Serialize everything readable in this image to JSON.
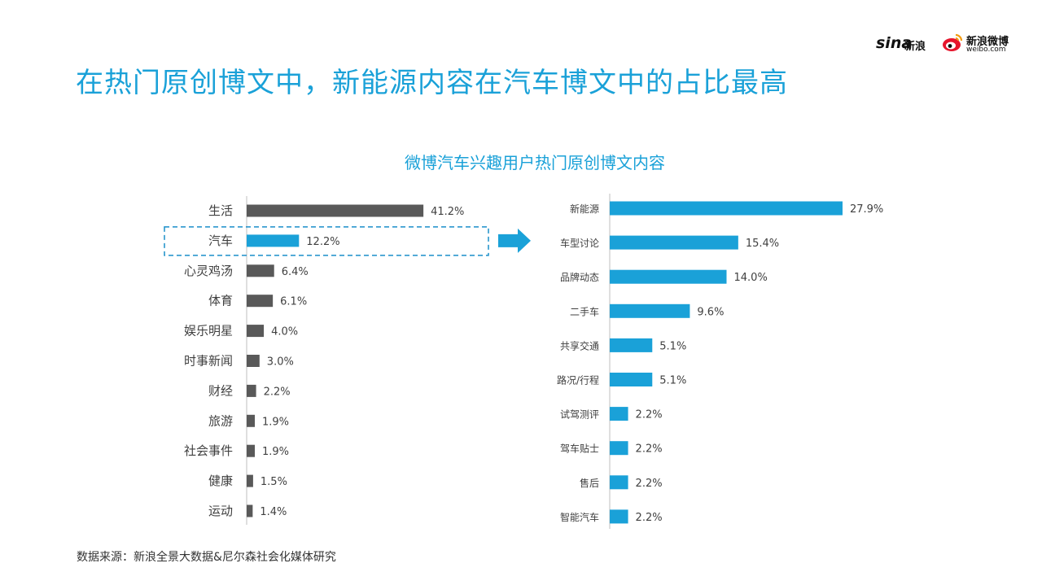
{
  "headline": "在热门原创博文中，新能源内容在汽车博文中的占比最高",
  "brand": {
    "sina": "sina",
    "sina_cn": "新浪",
    "weibo_name": "新浪微博",
    "weibo_url": "weibo.com"
  },
  "chart_title": "微博汽车兴趣用户热门原创博文内容",
  "source": "数据来源：新浪全景大数据&尼尔森社会化媒体研究",
  "colors": {
    "accent": "#1aa1d8",
    "dark_bar": "#595959",
    "highlight_border": "#1a8fc9"
  },
  "chart_data": [
    {
      "type": "bar",
      "orientation": "horizontal",
      "categories": [
        "生活",
        "汽车",
        "心灵鸡汤",
        "体育",
        "娱乐明星",
        "时事新闻",
        "财经",
        "旅游",
        "社会事件",
        "健康",
        "运动"
      ],
      "values": [
        41.2,
        12.2,
        6.4,
        6.1,
        4.0,
        3.0,
        2.2,
        1.9,
        1.9,
        1.5,
        1.4
      ],
      "value_labels": [
        "41.2%",
        "12.2%",
        "6.4%",
        "6.1%",
        "4.0%",
        "3.0%",
        "2.2%",
        "1.9%",
        "1.9%",
        "1.5%",
        "1.4%"
      ],
      "highlighted_category": "汽车",
      "bar_color": "#595959",
      "highlight_color": "#1aa1d8"
    },
    {
      "type": "bar",
      "orientation": "horizontal",
      "categories": [
        "新能源",
        "车型讨论",
        "品牌动态",
        "二手车",
        "共享交通",
        "路况/行程",
        "试驾测评",
        "驾车贴士",
        "售后",
        "智能汽车"
      ],
      "values": [
        27.9,
        15.4,
        14.0,
        9.6,
        5.1,
        5.1,
        2.2,
        2.2,
        2.2,
        2.2
      ],
      "value_labels": [
        "27.9%",
        "15.4%",
        "14.0%",
        "9.6%",
        "5.1%",
        "5.1%",
        "2.2%",
        "2.2%",
        "2.2%",
        "2.2%"
      ],
      "bar_color": "#1aa1d8"
    }
  ]
}
